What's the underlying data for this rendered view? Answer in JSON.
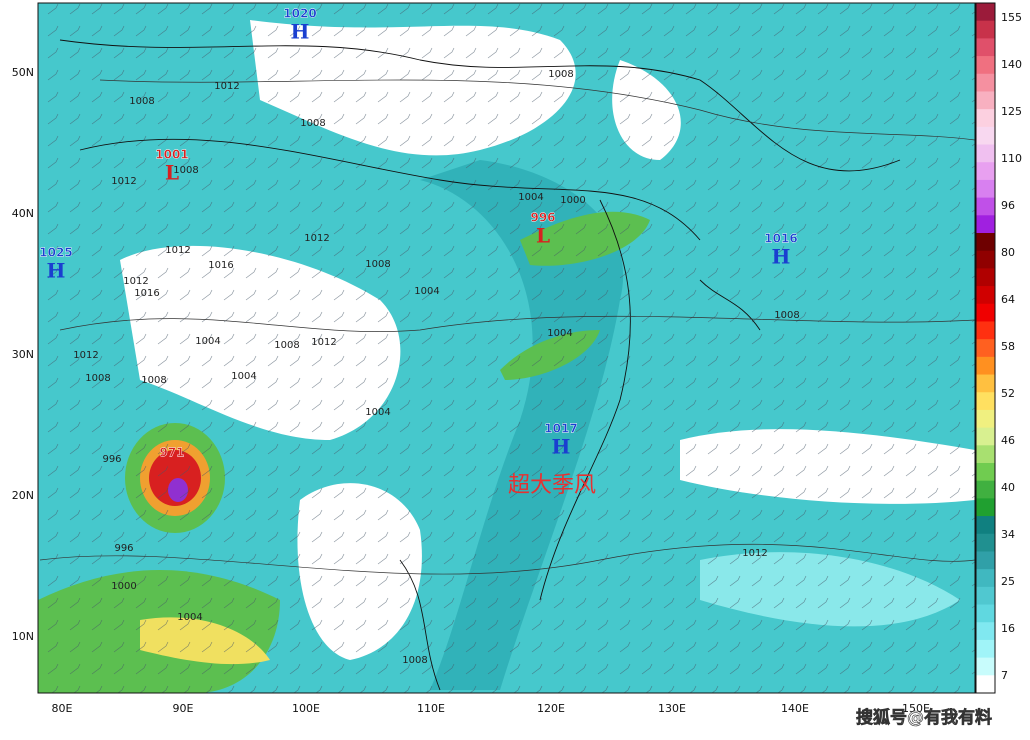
{
  "map": {
    "latitude_labels": [
      "50N",
      "40N",
      "30N",
      "20N",
      "10N"
    ],
    "longitude_labels": [
      "80E",
      "90E",
      "100E",
      "110E",
      "120E",
      "130E",
      "140E",
      "150E"
    ],
    "colorbar_labels": [
      "155",
      "140",
      "125",
      "110",
      "96",
      "80",
      "64",
      "58",
      "52",
      "46",
      "40",
      "34",
      "25",
      "16",
      "7"
    ],
    "pressure_centers": [
      {
        "type": "H",
        "value": "1020"
      },
      {
        "type": "L",
        "value": "1001"
      },
      {
        "type": "H",
        "value": "1025"
      },
      {
        "type": "L",
        "value": "996"
      },
      {
        "type": "H",
        "value": "1016"
      },
      {
        "type": "H",
        "value": "1017"
      },
      {
        "type": "L",
        "value": "971"
      }
    ],
    "contour_labels": [
      "1008",
      "1012",
      "1008",
      "1008",
      "1012",
      "1008",
      "1004",
      "1000",
      "1012",
      "1016",
      "1012",
      "1016",
      "1012",
      "1008",
      "1004",
      "1004",
      "1008",
      "1012",
      "1004",
      "1012",
      "1008",
      "1008",
      "1004",
      "1004",
      "996",
      "996",
      "1000",
      "1004",
      "1008",
      "1012",
      "1008"
    ],
    "annotation": "超大季风"
  },
  "watermark": "搜狐号@有我有料"
}
